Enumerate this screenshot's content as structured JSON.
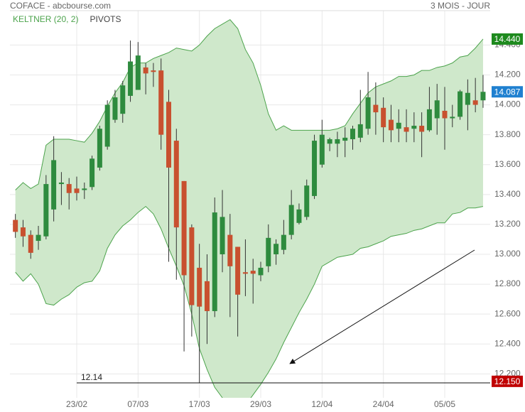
{
  "chart_data": {
    "type": "candlestick",
    "title": "COFACE - abcbourse.com",
    "period": "3 MOIS - JOUR",
    "legend": [
      {
        "name": "KELTNER (20, 2)",
        "color": "#4ca34c"
      },
      {
        "name": "PIVOTS",
        "color": "#444444"
      }
    ],
    "categories": [
      null,
      null,
      null,
      null,
      null,
      null,
      null,
      null,
      "23/02",
      null,
      null,
      null,
      null,
      null,
      null,
      null,
      "07/03",
      null,
      null,
      null,
      null,
      null,
      null,
      null,
      "17/03",
      null,
      null,
      null,
      null,
      null,
      null,
      null,
      "29/03",
      null,
      null,
      null,
      null,
      null,
      null,
      null,
      "12/04",
      null,
      null,
      null,
      null,
      null,
      null,
      null,
      "24/04",
      null,
      null,
      null,
      null,
      null,
      null,
      null,
      "05/05",
      null,
      null,
      null,
      null,
      null
    ],
    "open": [
      13.23,
      13.18,
      13.13,
      13.09,
      13.12,
      13.3,
      13.47,
      13.47,
      13.44,
      13.43,
      13.45,
      13.58,
      13.72,
      13.9,
      13.94,
      14.06,
      14.1,
      14.25,
      14.23,
      14.23,
      14.02,
      13.76,
      13.49,
      13.18,
      12.91,
      12.82,
      12.62,
      13.0,
      13.13,
      13.05,
      12.88,
      12.89,
      12.86,
      12.92,
      13.0,
      13.03,
      13.13,
      13.21,
      13.25,
      13.39,
      13.6,
      13.74,
      13.74,
      13.76,
      13.77,
      13.78,
      13.84,
      14.0,
      13.98,
      13.9,
      13.84,
      13.85,
      13.84,
      13.86,
      13.83,
      13.91,
      13.96,
      13.91,
      13.92,
      14.0,
      14.03,
      14.03
    ],
    "high": [
      13.27,
      13.23,
      13.16,
      13.19,
      13.53,
      13.79,
      13.55,
      13.51,
      13.52,
      13.48,
      13.66,
      13.86,
      14.03,
      14.1,
      14.16,
      14.43,
      14.42,
      14.28,
      14.28,
      14.31,
      14.1,
      13.84,
      13.49,
      13.2,
      13.07,
      13.0,
      13.38,
      13.43,
      13.27,
      13.05,
      13.1,
      12.97,
      12.95,
      13.2,
      13.1,
      13.23,
      13.43,
      13.34,
      13.5,
      13.8,
      13.9,
      13.78,
      13.82,
      13.85,
      13.86,
      14.1,
      14.22,
      14.15,
      14.05,
      14.0,
      13.97,
      13.97,
      13.95,
      13.95,
      14.12,
      14.14,
      14.12,
      14.0,
      14.1,
      14.17,
      14.18,
      14.2
    ],
    "low": [
      13.11,
      13.05,
      12.97,
      13.03,
      13.1,
      13.22,
      13.33,
      13.3,
      13.36,
      13.37,
      13.43,
      13.56,
      13.7,
      13.88,
      13.88,
      14.02,
      14.1,
      14.07,
      14.12,
      13.7,
      12.95,
      12.83,
      12.35,
      12.45,
      12.14,
      12.4,
      12.58,
      12.88,
      12.58,
      12.45,
      12.72,
      12.67,
      12.82,
      12.88,
      12.93,
      13.0,
      13.1,
      13.2,
      13.23,
      13.37,
      13.58,
      13.69,
      13.65,
      13.65,
      13.7,
      13.75,
      13.8,
      13.8,
      13.75,
      13.75,
      13.75,
      13.75,
      13.75,
      13.65,
      13.82,
      13.8,
      13.7,
      13.85,
      13.9,
      13.83,
      13.95,
      13.98
    ],
    "close": [
      13.15,
      13.12,
      13.01,
      13.13,
      13.47,
      13.63,
      13.48,
      13.41,
      13.41,
      13.44,
      13.64,
      13.84,
      14.0,
      14.05,
      14.13,
      14.29,
      14.33,
      14.21,
      14.22,
      13.8,
      13.58,
      13.18,
      12.86,
      12.66,
      12.65,
      12.62,
      13.28,
      13.25,
      12.92,
      12.73,
      12.87,
      12.87,
      12.91,
      13.11,
      13.07,
      13.13,
      13.33,
      13.3,
      13.46,
      13.76,
      13.8,
      13.77,
      13.77,
      13.78,
      13.84,
      13.87,
      14.05,
      13.95,
      13.85,
      13.83,
      13.88,
      13.82,
      13.86,
      13.82,
      13.97,
      14.03,
      13.91,
      13.92,
      14.09,
      14.08,
      14.0,
      14.087
    ],
    "up_color": "#2e8b3e",
    "down_color": "#c8502f",
    "keltner": {
      "upper": [
        13.43,
        13.48,
        13.44,
        13.47,
        13.73,
        13.77,
        13.77,
        13.77,
        13.76,
        13.75,
        13.81,
        13.89,
        13.99,
        14.08,
        14.15,
        14.25,
        14.28,
        14.28,
        14.31,
        14.33,
        14.35,
        14.38,
        14.37,
        14.36,
        14.4,
        14.46,
        14.51,
        14.54,
        14.57,
        14.51,
        14.37,
        14.28,
        14.13,
        13.94,
        13.83,
        13.86,
        13.83,
        13.83,
        13.83,
        13.83,
        13.83,
        13.83,
        13.84,
        13.86,
        13.94,
        14.01,
        14.08,
        14.12,
        14.14,
        14.16,
        14.19,
        14.19,
        14.2,
        14.23,
        14.23,
        14.25,
        14.26,
        14.28,
        14.32,
        14.33,
        14.38,
        14.44
      ],
      "lower": [
        12.88,
        12.82,
        12.87,
        12.8,
        12.67,
        12.66,
        12.7,
        12.73,
        12.78,
        12.81,
        12.82,
        12.89,
        13.04,
        13.13,
        13.19,
        13.23,
        13.28,
        13.32,
        13.27,
        13.17,
        13.04,
        12.92,
        12.79,
        12.6,
        12.37,
        12.23,
        12.11,
        12.04,
        11.97,
        11.95,
        11.99,
        12.06,
        12.13,
        12.21,
        12.3,
        12.41,
        12.51,
        12.61,
        12.7,
        12.8,
        12.92,
        12.95,
        12.98,
        12.99,
        13.0,
        13.04,
        13.05,
        13.07,
        13.09,
        13.12,
        13.13,
        13.14,
        13.16,
        13.17,
        13.19,
        13.21,
        13.21,
        13.27,
        13.28,
        13.31,
        13.31,
        13.32
      ]
    },
    "pivot": {
      "value": 12.14,
      "label": "12.14"
    },
    "badges": [
      {
        "value": 14.44,
        "label": "14.440",
        "color": "#1e8a1e"
      },
      {
        "value": 14.087,
        "label": "14.087",
        "color": "#1f80d0"
      },
      {
        "value": 12.15,
        "label": "12.150",
        "color": "#c00000"
      }
    ],
    "ylim": [
      12.04,
      14.63
    ],
    "yticks": [
      {
        "value": 12.2,
        "label": "12.200"
      },
      {
        "value": 12.4,
        "label": "12.400"
      },
      {
        "value": 12.6,
        "label": "12.600"
      },
      {
        "value": 12.8,
        "label": "12.800"
      },
      {
        "value": 13.0,
        "label": "13.000"
      },
      {
        "value": 13.2,
        "label": "13.200"
      },
      {
        "value": 13.4,
        "label": "13.400"
      },
      {
        "value": 13.6,
        "label": "13.600"
      },
      {
        "value": 13.8,
        "label": "13.800"
      },
      {
        "value": 14.0,
        "label": "14.000"
      },
      {
        "value": 14.2,
        "label": "14.200"
      },
      {
        "value": 14.4,
        "label": "14.400"
      }
    ],
    "grid": true
  }
}
